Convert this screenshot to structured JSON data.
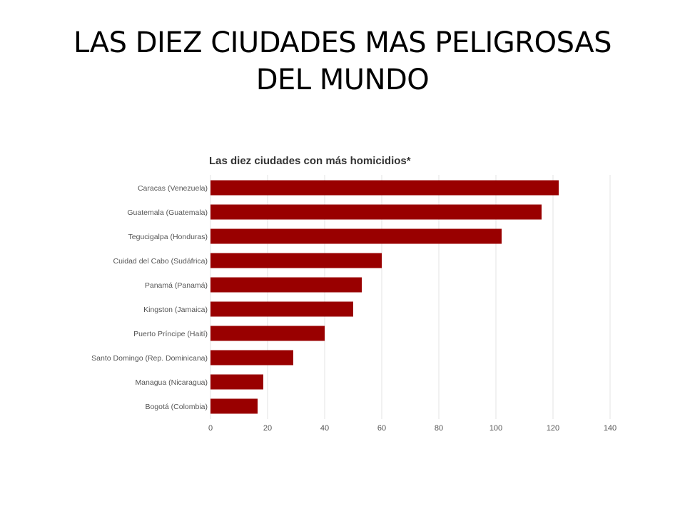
{
  "slide": {
    "title_line1": "LAS DIEZ CIUDADES MAS PELIGROSAS",
    "title_line2": "DEL MUNDO"
  },
  "colors": {
    "bar": "#990000",
    "grid": "#e3e3e3",
    "text": "#555555",
    "title": "#333333"
  },
  "chart_data": {
    "type": "bar",
    "orientation": "horizontal",
    "title": "Las diez ciudades con más homicidios*",
    "categories": [
      "Caracas (Venezuela)",
      "Guatemala (Guatemala)",
      "Tegucigalpa (Honduras)",
      "Cuidad del Cabo (Sudáfrica)",
      "Panamá (Panamá)",
      "Kingston (Jamaica)",
      "Puerto Príncipe (Haití)",
      "Santo Domingo (Rep. Dominicana)",
      "Managua (Nicaragua)",
      "Bogotá (Colombia)"
    ],
    "values": [
      122,
      116,
      102,
      60,
      53,
      50,
      40,
      29,
      18.5,
      16.5
    ],
    "xlim": [
      0,
      140
    ],
    "xticks": [
      "0",
      "20",
      "40",
      "60",
      "80",
      "100",
      "120",
      "140"
    ],
    "grid": true,
    "xlabel": "",
    "ylabel": ""
  }
}
